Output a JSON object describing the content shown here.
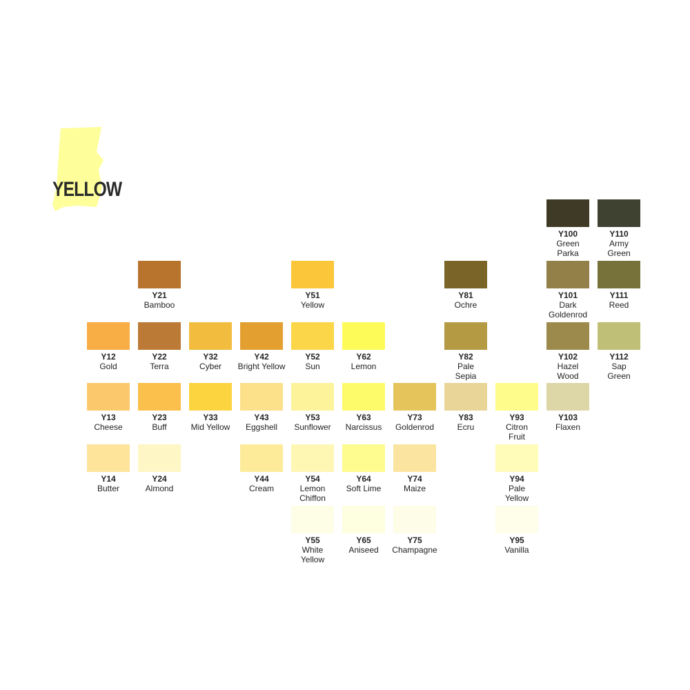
{
  "header": {
    "title": "YELLOW"
  },
  "swatches": [
    {
      "code": "Y12",
      "name": "Gold",
      "color": "#f9ad45"
    },
    {
      "code": "Y13",
      "name": "Cheese",
      "color": "#fbc96b"
    },
    {
      "code": "Y14",
      "name": "Butter",
      "color": "#fde49a"
    },
    {
      "code": "Y21",
      "name": "Bamboo",
      "color": "#b8732c"
    },
    {
      "code": "Y22",
      "name": "Terra",
      "color": "#bc7a37"
    },
    {
      "code": "Y23",
      "name": "Buff",
      "color": "#fbbf4c"
    },
    {
      "code": "Y24",
      "name": "Almond",
      "color": "#fef6c4"
    },
    {
      "code": "Y32",
      "name": "Cyber",
      "color": "#f2bd3e"
    },
    {
      "code": "Y33",
      "name": "Mid Yellow",
      "color": "#fcd43f"
    },
    {
      "code": "Y42",
      "name": "Bright Yellow",
      "color": "#e3a030"
    },
    {
      "code": "Y43",
      "name": "Eggshell",
      "color": "#fce08a"
    },
    {
      "code": "Y44",
      "name": "Cream",
      "color": "#fdeb9a"
    },
    {
      "code": "Y51",
      "name": "Yellow",
      "color": "#fbc63a"
    },
    {
      "code": "Y52",
      "name": "Sun",
      "color": "#fcd649"
    },
    {
      "code": "Y53",
      "name": "Sunflower",
      "color": "#fdf39b"
    },
    {
      "code": "Y54",
      "name": "Lemon Chiffon",
      "color": "#fef7b4"
    },
    {
      "code": "Y55",
      "name": "White Yellow",
      "color": "#fefde6"
    },
    {
      "code": "Y62",
      "name": "Lemon",
      "color": "#fdfb57"
    },
    {
      "code": "Y63",
      "name": "Narcissus",
      "color": "#fefb6a"
    },
    {
      "code": "Y64",
      "name": "Soft Lime",
      "color": "#fefc8e"
    },
    {
      "code": "Y65",
      "name": "Aniseed",
      "color": "#fefee0"
    },
    {
      "code": "Y73",
      "name": "Goldenrod",
      "color": "#e5c45c"
    },
    {
      "code": "Y74",
      "name": "Maize",
      "color": "#fbe4a0"
    },
    {
      "code": "Y75",
      "name": "Champagne",
      "color": "#fefde8"
    },
    {
      "code": "Y81",
      "name": "Ochre",
      "color": "#7a6428"
    },
    {
      "code": "Y82",
      "name": "Pale Sepia",
      "color": "#b49a43"
    },
    {
      "code": "Y83",
      "name": "Ecru",
      "color": "#e8d597"
    },
    {
      "code": "Y93",
      "name": "Citron Fruit",
      "color": "#fefc8a"
    },
    {
      "code": "Y94",
      "name": "Pale Yellow",
      "color": "#fefcb8"
    },
    {
      "code": "Y95",
      "name": "Vanilla",
      "color": "#fefeea"
    },
    {
      "code": "Y100",
      "name": "Green Parka",
      "color": "#3e3a26"
    },
    {
      "code": "Y101",
      "name": "Dark Goldenrod",
      "color": "#938049"
    },
    {
      "code": "Y102",
      "name": "Hazel Wood",
      "color": "#9c8a4c"
    },
    {
      "code": "Y103",
      "name": "Flaxen",
      "color": "#ddd6a6"
    },
    {
      "code": "Y110",
      "name": "Army Green",
      "color": "#3f4230"
    },
    {
      "code": "Y111",
      "name": "Reed",
      "color": "#77723a"
    },
    {
      "code": "Y112",
      "name": "Sap Green",
      "color": "#bfbf78"
    }
  ]
}
